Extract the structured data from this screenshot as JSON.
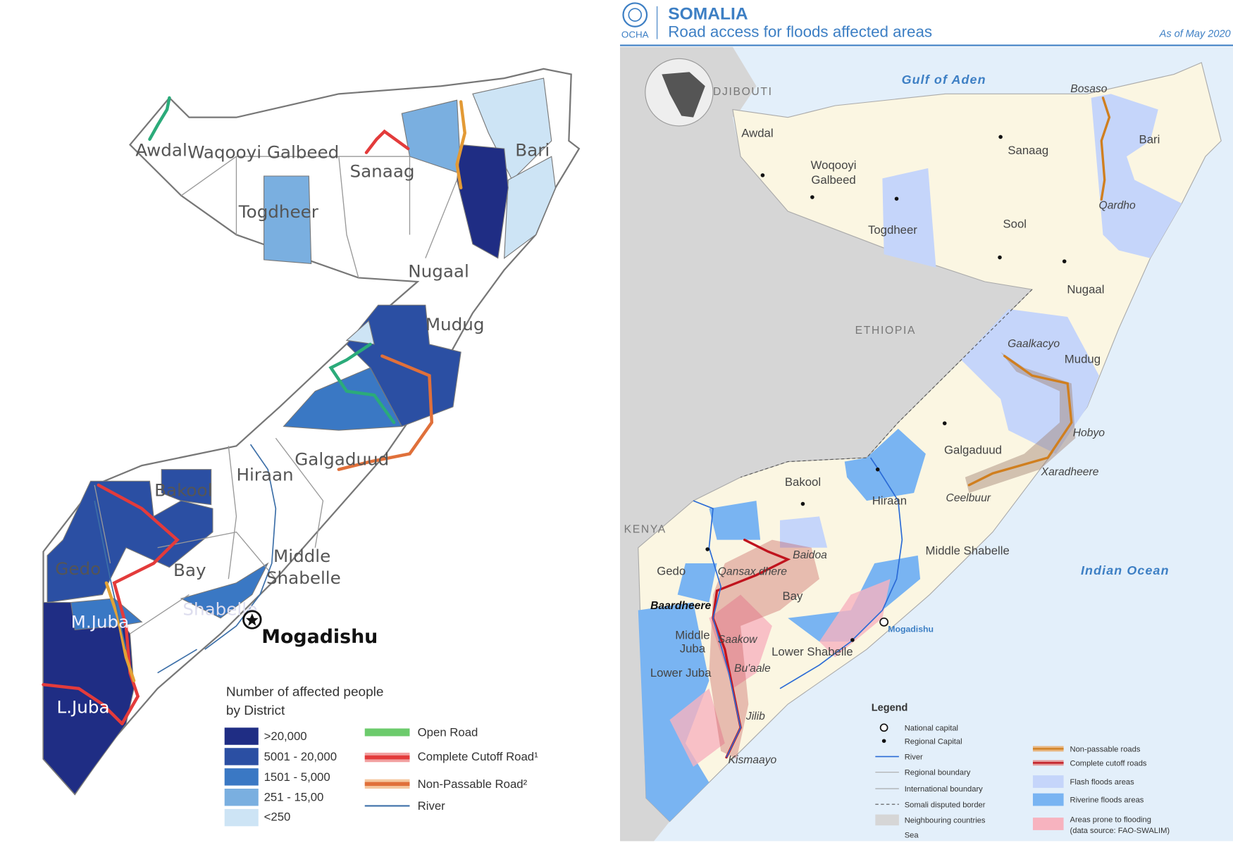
{
  "left_map": {
    "region_labels": [
      "Awdal",
      "Waqooyi Galbeed",
      "Sanaag",
      "Bari",
      "Togdheer",
      "Nugaal",
      "Mudug",
      "Galgaduud",
      "Hiraan",
      "Bakool",
      "Bay",
      "Gedo",
      "Middle",
      "Shabelle",
      "Shabelle",
      "M.Juba",
      "L.Juba"
    ],
    "capital": "Mogadishu",
    "legend": {
      "title": [
        "Number of affected people",
        "by District"
      ],
      "classes": [
        ">20,000",
        "5001 - 20,000",
        "1501 - 5,000",
        "251 - 15,00",
        "<250"
      ],
      "lines": [
        "Open Road",
        "Complete Cutoff Road¹",
        "Non-Passable Road²",
        "River"
      ]
    }
  },
  "right_map": {
    "header": {
      "org": "OCHA",
      "country": "SOMALIA",
      "title": "Road access for floods affected areas",
      "date": "As of May 2020"
    },
    "sea_labels": [
      "Gulf of Aden",
      "Indian Ocean"
    ],
    "country_labels": [
      "DJIBOUTI",
      "ETHIOPIA",
      "KENYA"
    ],
    "region_labels": [
      "Awdal",
      "Woqooyi",
      "Galbeed",
      "Sanaag",
      "Bari",
      "Togdheer",
      "Sool",
      "Nugaal",
      "Mudug",
      "Galgaduud",
      "Hiraan",
      "Bakool",
      "Bay",
      "Gedo",
      "Middle Shabelle",
      "Middle",
      "Juba",
      "Lower Shabelle",
      "Lower Juba"
    ],
    "place_labels": [
      "Bosaso",
      "Qardho",
      "Gaalkacyo",
      "Hobyo",
      "Xaradheere",
      "Ceelbuur",
      "Baidoa",
      "Qansax dhere",
      "Baardheere",
      "Saakow",
      "Bu'aale",
      "Jilib",
      "Kismaayo",
      "Mogadishu"
    ],
    "legend": {
      "title": "Legend",
      "items": [
        "National capital",
        "Regional Capital",
        "River",
        "Regional boundary",
        "International boundary",
        "Somali disputed border",
        "Neighbouring countries",
        "Sea",
        "Non-passable roads",
        "Complete cutoff roads",
        "Flash floods areas",
        "Riverine floods areas",
        "Areas prone to flooding",
        "(data source: FAO-SWALIM)"
      ]
    }
  }
}
